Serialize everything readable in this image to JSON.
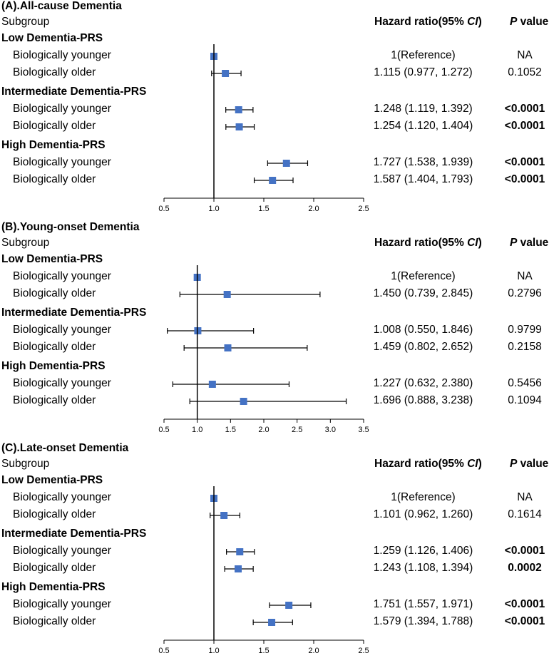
{
  "header": {
    "subgroup": "Subgroup",
    "hazard_ratio_prefix": "Hazard ratio(95% ",
    "ci": "CI",
    "hazard_ratio_suffix": ")",
    "p": "P",
    "value": " value"
  },
  "colors": {
    "marker": "#4472c4",
    "line": "#000000"
  },
  "chart_data": [
    {
      "type": "forest",
      "title": "(A).All-cause Dementia",
      "xlim": [
        0.5,
        2.5
      ],
      "ticks": [
        "0.5",
        "1.0",
        "1.5",
        "2.0",
        "2.5"
      ],
      "reference_line": 1.0,
      "groups": [
        {
          "name": "Low Dementia-PRS",
          "rows": [
            {
              "label": "Biologically younger",
              "hr": 1.0,
              "lo": null,
              "hi": null,
              "text": "1(Reference)",
              "p": "NA",
              "bold": false
            },
            {
              "label": "Biologically older",
              "hr": 1.115,
              "lo": 0.977,
              "hi": 1.272,
              "text": "1.115 (0.977, 1.272)",
              "p": "0.1052",
              "bold": false
            }
          ]
        },
        {
          "name": "Intermediate Dementia-PRS",
          "rows": [
            {
              "label": "Biologically younger",
              "hr": 1.248,
              "lo": 1.119,
              "hi": 1.392,
              "text": "1.248 (1.119, 1.392)",
              "p": "<0.0001",
              "bold": true
            },
            {
              "label": "Biologically older",
              "hr": 1.254,
              "lo": 1.12,
              "hi": 1.404,
              "text": "1.254 (1.120, 1.404)",
              "p": "<0.0001",
              "bold": true
            }
          ]
        },
        {
          "name": "High Dementia-PRS",
          "rows": [
            {
              "label": "Biologically younger",
              "hr": 1.727,
              "lo": 1.538,
              "hi": 1.939,
              "text": "1.727 (1.538, 1.939)",
              "p": "<0.0001",
              "bold": true
            },
            {
              "label": "Biologically older",
              "hr": 1.587,
              "lo": 1.404,
              "hi": 1.793,
              "text": "1.587 (1.404, 1.793)",
              "p": "<0.0001",
              "bold": true
            }
          ]
        }
      ]
    },
    {
      "type": "forest",
      "title": "(B).Young-onset Dementia",
      "xlim": [
        0.5,
        3.5
      ],
      "ticks": [
        "0.5",
        "1.0",
        "1.5",
        "2.0",
        "2.5",
        "3.0",
        "3.5"
      ],
      "reference_line": 1.0,
      "groups": [
        {
          "name": "Low Dementia-PRS",
          "rows": [
            {
              "label": "Biologically younger",
              "hr": 1.0,
              "lo": null,
              "hi": null,
              "text": "1(Reference)",
              "p": "NA",
              "bold": false
            },
            {
              "label": "Biologically older",
              "hr": 1.45,
              "lo": 0.739,
              "hi": 2.845,
              "text": "1.450 (0.739, 2.845)",
              "p": "0.2796",
              "bold": false
            }
          ]
        },
        {
          "name": "Intermediate Dementia-PRS",
          "rows": [
            {
              "label": "Biologically younger",
              "hr": 1.008,
              "lo": 0.55,
              "hi": 1.846,
              "text": "1.008 (0.550, 1.846)",
              "p": "0.9799",
              "bold": false
            },
            {
              "label": "Biologically older",
              "hr": 1.459,
              "lo": 0.802,
              "hi": 2.652,
              "text": "1.459 (0.802, 2.652)",
              "p": "0.2158",
              "bold": false
            }
          ]
        },
        {
          "name": "High Dementia-PRS",
          "rows": [
            {
              "label": "Biologically younger",
              "hr": 1.227,
              "lo": 0.632,
              "hi": 2.38,
              "text": "1.227 (0.632, 2.380)",
              "p": "0.5456",
              "bold": false
            },
            {
              "label": "Biologically older",
              "hr": 1.696,
              "lo": 0.888,
              "hi": 3.238,
              "text": "1.696 (0.888, 3.238)",
              "p": "0.1094",
              "bold": false
            }
          ]
        }
      ]
    },
    {
      "type": "forest",
      "title": "(C).Late-onset Dementia",
      "xlim": [
        0.5,
        2.5
      ],
      "ticks": [
        "0.5",
        "1.0",
        "1.5",
        "2.0",
        "2.5"
      ],
      "reference_line": 1.0,
      "groups": [
        {
          "name": "Low Dementia-PRS",
          "rows": [
            {
              "label": "Biologically younger",
              "hr": 1.0,
              "lo": null,
              "hi": null,
              "text": "1(Reference)",
              "p": "NA",
              "bold": false
            },
            {
              "label": "Biologically older",
              "hr": 1.101,
              "lo": 0.962,
              "hi": 1.26,
              "text": "1.101 (0.962, 1.260)",
              "p": "0.1614",
              "bold": false
            }
          ]
        },
        {
          "name": "Intermediate Dementia-PRS",
          "rows": [
            {
              "label": "Biologically younger",
              "hr": 1.259,
              "lo": 1.126,
              "hi": 1.406,
              "text": "1.259 (1.126, 1.406)",
              "p": "<0.0001",
              "bold": true
            },
            {
              "label": "Biologically older",
              "hr": 1.243,
              "lo": 1.108,
              "hi": 1.394,
              "text": "1.243 (1.108, 1.394)",
              "p": "0.0002",
              "bold": true
            }
          ]
        },
        {
          "name": "High Dementia-PRS",
          "rows": [
            {
              "label": "Biologically younger",
              "hr": 1.751,
              "lo": 1.557,
              "hi": 1.971,
              "text": "1.751 (1.557, 1.971)",
              "p": "<0.0001",
              "bold": true
            },
            {
              "label": "Biologically older",
              "hr": 1.579,
              "lo": 1.394,
              "hi": 1.788,
              "text": "1.579 (1.394, 1.788)",
              "p": "<0.0001",
              "bold": true
            }
          ]
        }
      ]
    }
  ]
}
